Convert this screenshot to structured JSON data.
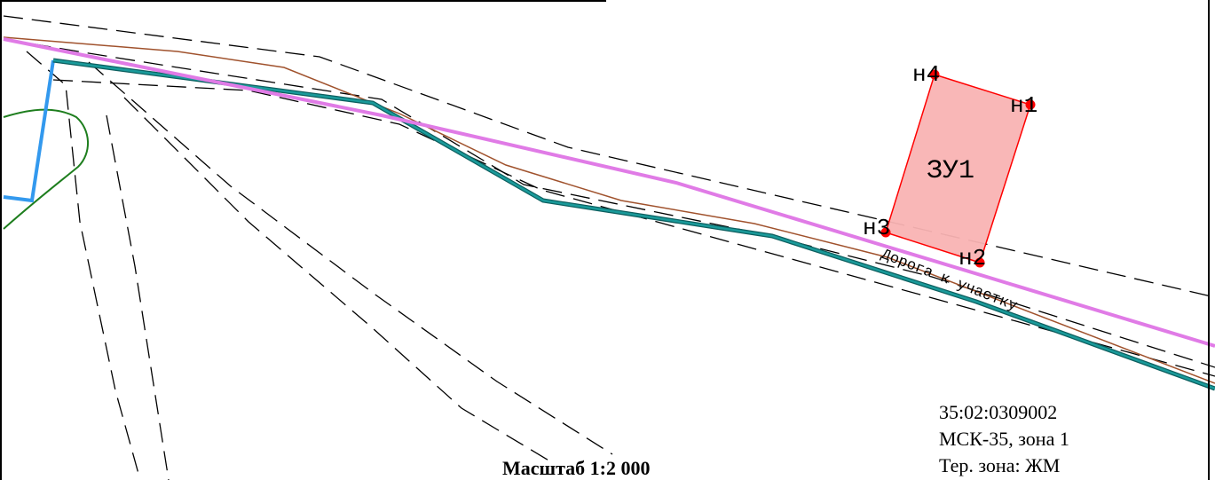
{
  "map": {
    "parcel": {
      "label": "ЗУ1",
      "points": [
        {
          "label": "н1"
        },
        {
          "label": "н2"
        },
        {
          "label": "н3"
        },
        {
          "label": "н4"
        }
      ]
    },
    "road_label": "Дорога к участку",
    "scale": "Масштаб 1:2 000",
    "info": {
      "cadastral_block": "35:02:0309002",
      "coordinate_system": "МСК-35, зона 1",
      "territorial_zone": "Тер. зона: ЖМ"
    }
  },
  "colors": {
    "parcel_fill": "#f9b3b3",
    "parcel_stroke": "#ff0000",
    "point_fill": "#ff0000",
    "road_line": "#e07be6",
    "boundary_teal": "#1a8c8c",
    "brown_line": "#a0522d",
    "green_line": "#1e7e1e",
    "blue_line": "#3399ee",
    "dashed_line": "#000000"
  }
}
